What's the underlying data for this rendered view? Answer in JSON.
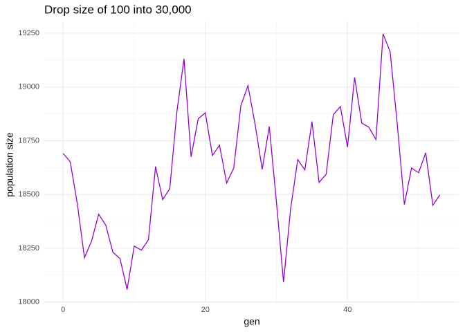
{
  "chart_data": {
    "type": "line",
    "title": "Drop size of 100 into 30,000",
    "x_label": "gen",
    "y_label": "population size",
    "x": [
      0,
      1,
      2,
      3,
      4,
      5,
      6,
      7,
      8,
      9,
      10,
      11,
      12,
      13,
      14,
      15,
      16,
      17,
      18,
      19,
      20,
      21,
      22,
      23,
      24,
      25,
      26,
      27,
      28,
      29,
      30,
      31,
      32,
      33,
      34,
      35,
      36,
      37,
      38,
      39,
      40,
      41,
      42,
      43,
      44,
      45,
      46,
      47,
      48,
      49,
      50,
      51,
      52,
      53
    ],
    "series": [
      {
        "name": "population size",
        "color": "#9400d3",
        "values": [
          18691,
          18652,
          18456,
          18206,
          18283,
          18408,
          18357,
          18231,
          18202,
          18058,
          18260,
          18241,
          18289,
          18630,
          18476,
          18527,
          18884,
          19131,
          18675,
          18852,
          18880,
          18681,
          18729,
          18553,
          18623,
          18913,
          19006,
          18826,
          18617,
          18816,
          18466,
          18093,
          18434,
          18662,
          18614,
          18839,
          18556,
          18594,
          18871,
          18909,
          18720,
          19044,
          18832,
          18813,
          18755,
          19247,
          19163,
          18826,
          18453,
          18623,
          18601,
          18694,
          18450,
          18498
        ]
      }
    ],
    "xlim": [
      -2.65,
      55.65
    ],
    "xticks": [
      0,
      20,
      40
    ],
    "ylim": [
      17995.5,
      19304.5
    ],
    "yticks": [
      18000,
      18250,
      18500,
      18750,
      19000,
      19250
    ],
    "grid": true
  }
}
